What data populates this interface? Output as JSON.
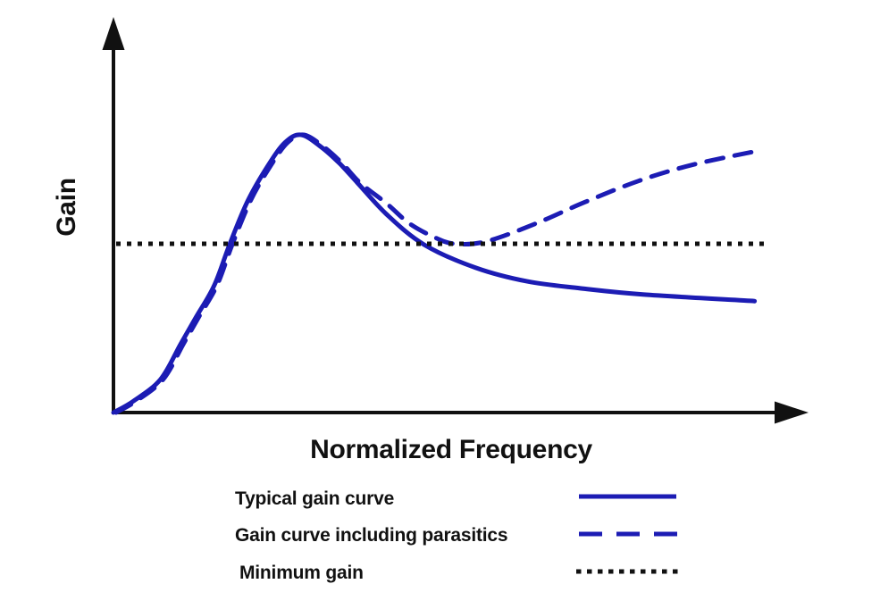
{
  "colors": {
    "curve_blue": "#1c1cb4",
    "ink": "#111111",
    "background": "#ffffff"
  },
  "axes": {
    "x_label": "Normalized Frequency",
    "y_label": "Gain"
  },
  "legend": {
    "items": [
      {
        "label": "Typical gain curve",
        "style": "solid",
        "color": "#1c1cb4"
      },
      {
        "label": "Gain curve including parasitics",
        "style": "dashed",
        "color": "#1c1cb4"
      },
      {
        "label": "Minimum gain",
        "style": "dotted",
        "color": "#111111"
      }
    ]
  },
  "chart_data": {
    "type": "line",
    "title": "",
    "xlabel": "Normalized Frequency",
    "ylabel": "Gain",
    "x_range": [
      0,
      1
    ],
    "y_range": [
      0,
      1
    ],
    "ticks": "none (qualitative sketch, unlabeled axes with arrowheads)",
    "grid": false,
    "legend_position": "below-chart",
    "annotations": {
      "peak_of_typical_curve": [
        0.28,
        0.72
      ],
      "minimum_gain_level": 0.4375,
      "parasitic_divergence_x": 0.4
    },
    "series": [
      {
        "name": "Typical gain curve",
        "style": "solid",
        "color": "#1c1cb4",
        "points": [
          [
            0.0,
            0.0
          ],
          [
            0.03,
            0.03
          ],
          [
            0.07,
            0.086
          ],
          [
            0.1,
            0.178
          ],
          [
            0.123,
            0.248
          ],
          [
            0.15,
            0.33
          ],
          [
            0.173,
            0.4375
          ],
          [
            0.2,
            0.55
          ],
          [
            0.23,
            0.641
          ],
          [
            0.255,
            0.7
          ],
          [
            0.279,
            0.72
          ],
          [
            0.309,
            0.688
          ],
          [
            0.336,
            0.646
          ],
          [
            0.363,
            0.595
          ],
          [
            0.406,
            0.514
          ],
          [
            0.462,
            0.435
          ],
          [
            0.539,
            0.375
          ],
          [
            0.615,
            0.34
          ],
          [
            0.694,
            0.322
          ],
          [
            0.787,
            0.306
          ],
          [
            0.953,
            0.289
          ]
        ]
      },
      {
        "name": "Gain curve including parasitics",
        "style": "dashed",
        "color": "#1c1cb4",
        "points": [
          [
            0.004,
            0.0
          ],
          [
            0.034,
            0.03
          ],
          [
            0.074,
            0.086
          ],
          [
            0.104,
            0.178
          ],
          [
            0.127,
            0.248
          ],
          [
            0.154,
            0.33
          ],
          [
            0.177,
            0.4375
          ],
          [
            0.204,
            0.55
          ],
          [
            0.234,
            0.641
          ],
          [
            0.259,
            0.7
          ],
          [
            0.283,
            0.72
          ],
          [
            0.313,
            0.688
          ],
          [
            0.34,
            0.646
          ],
          [
            0.367,
            0.595
          ],
          [
            0.406,
            0.542
          ],
          [
            0.44,
            0.49
          ],
          [
            0.48,
            0.452
          ],
          [
            0.51,
            0.437
          ],
          [
            0.555,
            0.444
          ],
          [
            0.628,
            0.49
          ],
          [
            0.7,
            0.545
          ],
          [
            0.78,
            0.6
          ],
          [
            0.86,
            0.642
          ],
          [
            0.951,
            0.676
          ]
        ]
      },
      {
        "name": "Minimum gain",
        "style": "dotted",
        "color": "#111111",
        "points": [
          [
            0.004,
            0.4375
          ],
          [
            0.969,
            0.4375
          ]
        ]
      }
    ]
  }
}
